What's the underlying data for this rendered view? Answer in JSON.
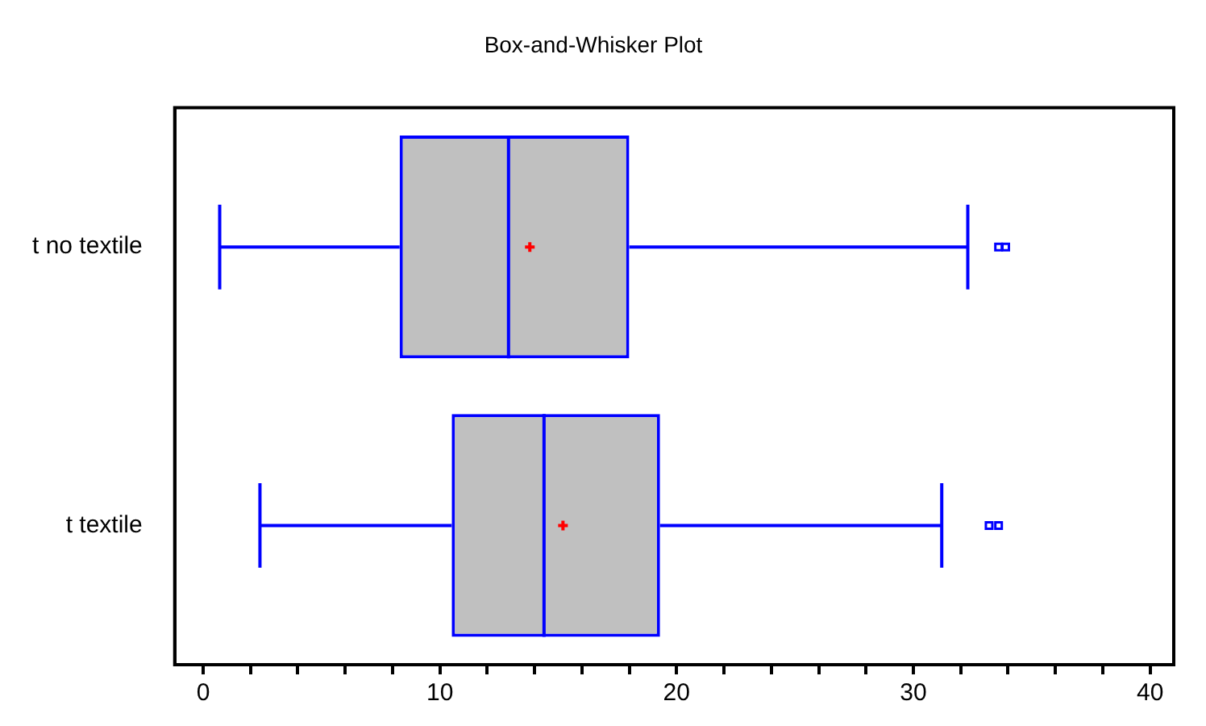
{
  "chart_data": {
    "type": "box",
    "title": "Box-and-Whisker Plot",
    "orientation": "horizontal",
    "categories": [
      "t no textile",
      "t textile"
    ],
    "color": "#0000ff",
    "boxes": [
      {
        "low": 0.7,
        "q1": 8.3,
        "median": 12.9,
        "q3": 18.0,
        "high": 32.3,
        "mean": 13.8,
        "outliers": [
          33.6,
          33.9
        ]
      },
      {
        "low": 2.4,
        "q1": 10.5,
        "median": 14.4,
        "q3": 19.3,
        "high": 31.2,
        "mean": 15.2,
        "outliers": [
          33.2,
          33.6
        ]
      }
    ],
    "xlim": [
      -1.2,
      41
    ],
    "xticks": [
      0,
      {
        "value": 2,
        "label": null
      },
      {
        "value": 4,
        "label": null
      },
      {
        "value": 6,
        "label": null
      },
      {
        "value": 8,
        "label": null
      },
      10,
      {
        "value": 12,
        "label": null
      },
      {
        "value": 14,
        "label": null
      },
      {
        "value": 16,
        "label": null
      },
      {
        "value": 18,
        "label": null
      },
      20,
      {
        "value": 22,
        "label": null
      },
      {
        "value": 24,
        "label": null
      },
      {
        "value": 26,
        "label": null
      },
      {
        "value": 28,
        "label": null
      },
      30,
      {
        "value": 32,
        "label": null
      },
      {
        "value": 34,
        "label": null
      },
      {
        "value": 36,
        "label": null
      },
      {
        "value": 38,
        "label": null
      },
      40
    ],
    "grid": false,
    "legend": false
  }
}
